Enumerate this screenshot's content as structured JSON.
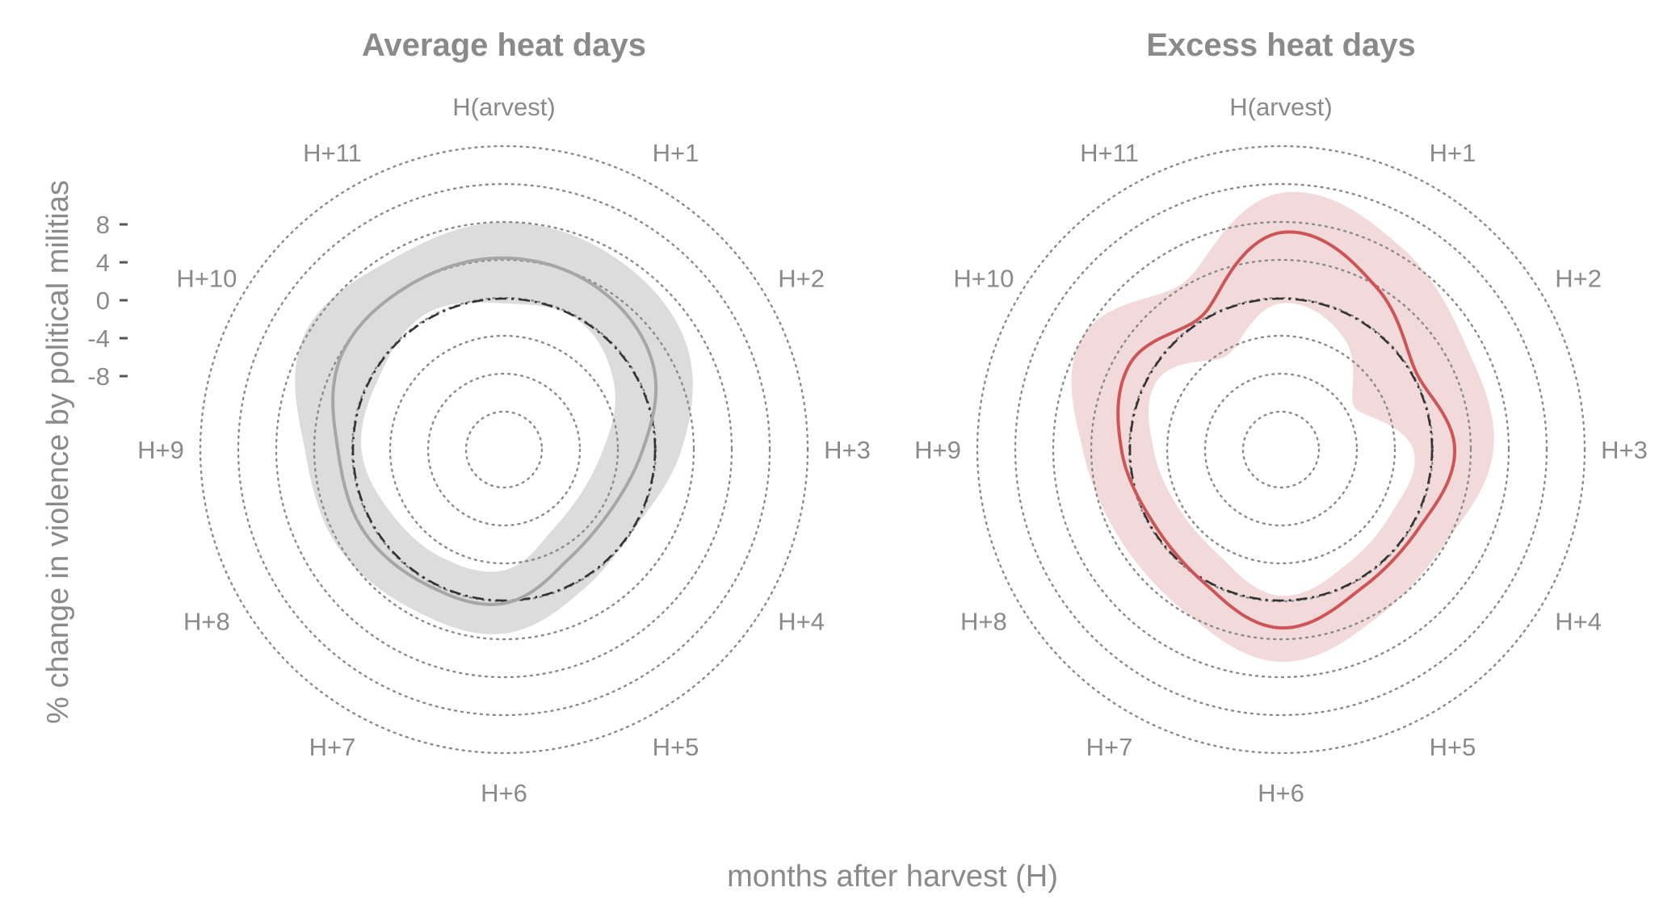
{
  "colors": {
    "text": "#8a8a8a",
    "grid": "#8a8a8a",
    "baseline": "#333333",
    "avg_line": "#a6a6a6",
    "avg_band": "#dcdcdc",
    "exc_line": "#cd5555",
    "exc_band": "#f3dada"
  },
  "chart_data": [
    {
      "type": "radar",
      "title": "Average heat days",
      "xlabel": "months after harvest (H)",
      "ylabel": "% change in violence by political militias",
      "categories": [
        "H(arvest)",
        "H+1",
        "H+2",
        "H+3",
        "H+4",
        "H+5",
        "H+6",
        "H+7",
        "H+8",
        "H+9",
        "H+10",
        "H+11"
      ],
      "yticks": [
        "8",
        "4",
        "0",
        "-4",
        "-8"
      ],
      "ylim": [
        -20,
        20
      ],
      "grid": true,
      "baseline": 0,
      "series": [
        {
          "values": [
            4.3,
            3.8,
            2.2,
            -1.3,
            -3.0,
            -2.5,
            0.3,
            0.5,
            1.2,
            1.6,
            3.9,
            4.1
          ],
          "lower": [
            -0.5,
            -0.2,
            -2.5,
            -5.5,
            -6.6,
            -6.0,
            -3.2,
            -2.8,
            -2.3,
            -0.9,
            -0.7,
            0.6
          ],
          "upper": [
            8.1,
            7.5,
            6.3,
            2.8,
            0.2,
            1.0,
            3.5,
            3.5,
            4.4,
            5.1,
            8.4,
            7.4
          ]
        }
      ]
    },
    {
      "type": "radar",
      "title": "Excess heat days",
      "xlabel": "months after harvest (H)",
      "ylabel": "% change in violence by political militias",
      "categories": [
        "H(arvest)",
        "H+1",
        "H+2",
        "H+3",
        "H+4",
        "H+5",
        "H+6",
        "H+7",
        "H+8",
        "H+9",
        "H+10",
        "H+11"
      ],
      "yticks": [
        "8",
        "4",
        "0",
        "-4",
        "-8"
      ],
      "ylim": [
        -20,
        20
      ],
      "grid": true,
      "baseline": 0,
      "series": [
        {
          "values": [
            7.0,
            4.0,
            0.5,
            2.4,
            0.8,
            1.0,
            2.9,
            0.3,
            -0.4,
            0.9,
            2.4,
            0.5
          ],
          "lower": [
            -0.5,
            -2.5,
            -7.0,
            -2.0,
            -2.5,
            -2.0,
            -0.5,
            -3.0,
            -3.5,
            -2.5,
            -1.0,
            -4.5
          ],
          "upper": [
            11.2,
            9.0,
            6.5,
            6.5,
            4.0,
            4.5,
            6.5,
            4.0,
            3.5,
            5.0,
            8.2,
            4.5
          ]
        }
      ]
    }
  ]
}
